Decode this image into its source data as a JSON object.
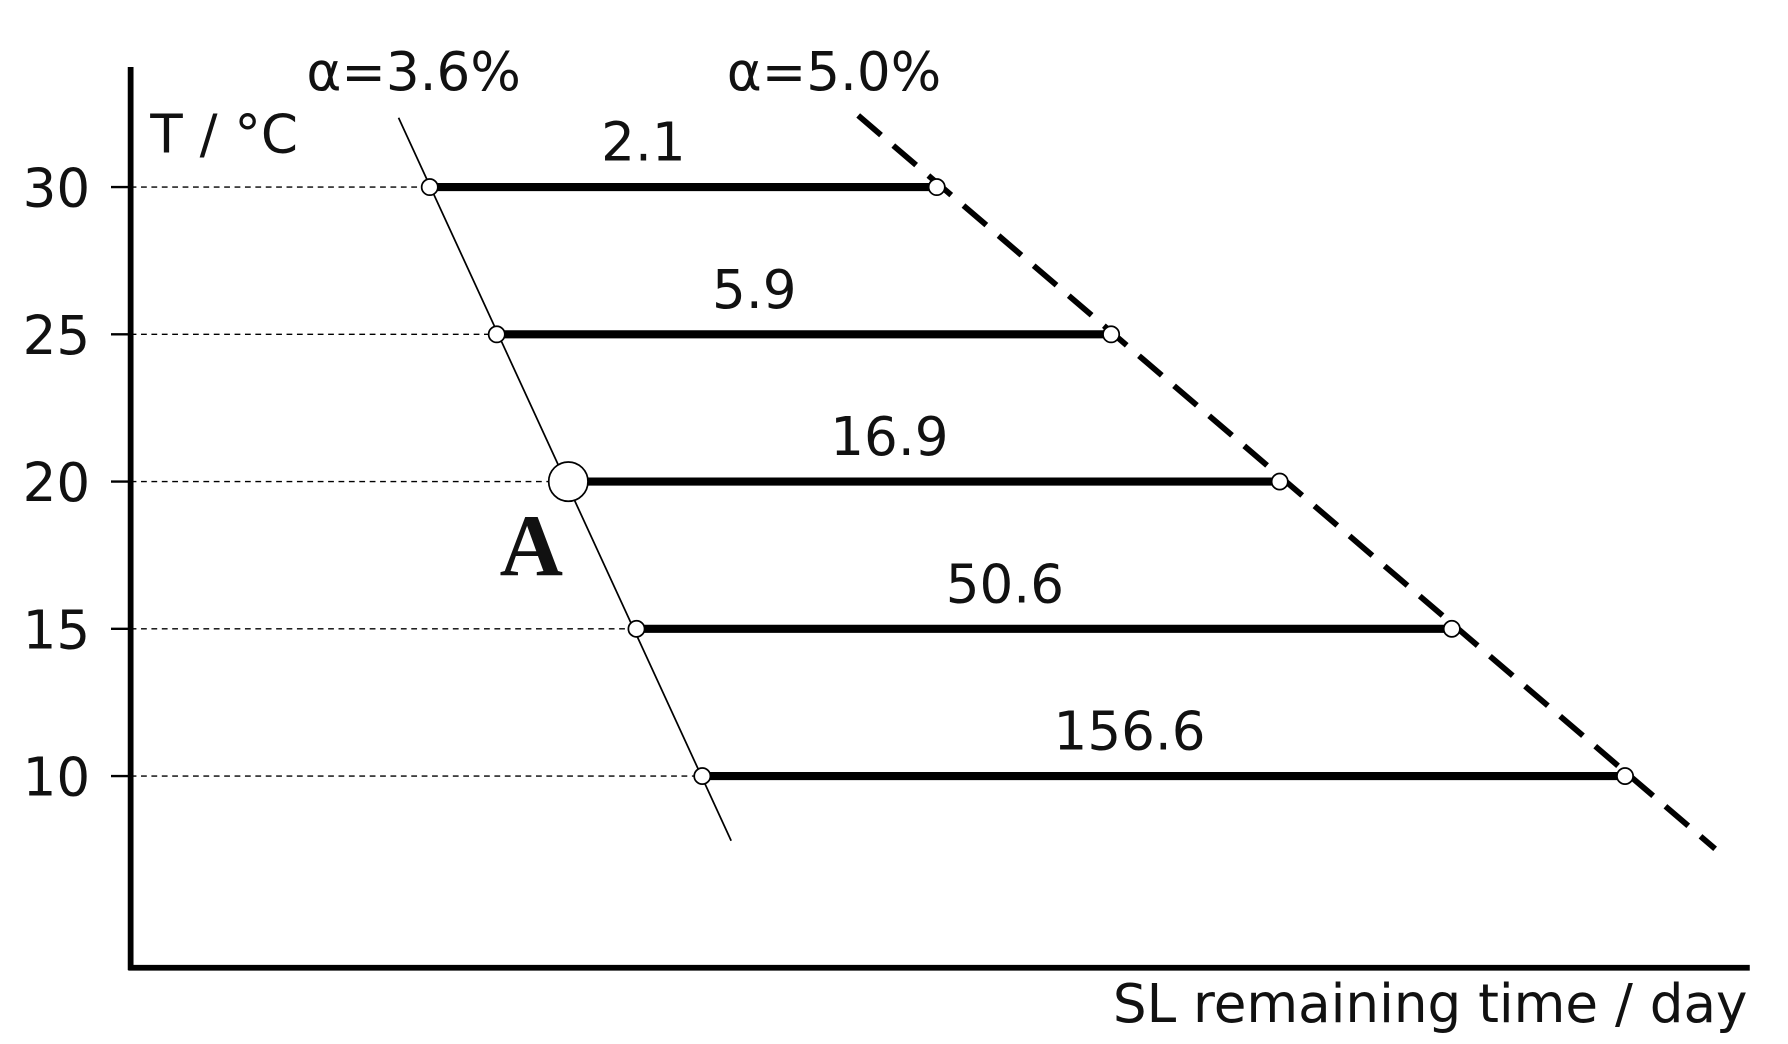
{
  "y_axis": {
    "label": "T / °C",
    "ticks": [
      30,
      25,
      20,
      15,
      10
    ]
  },
  "x_axis": {
    "label": "SL remaining  time / day"
  },
  "lines": [
    {
      "label": "α=3.6%"
    },
    {
      "label": "α=5.0%"
    }
  ],
  "segments": [
    {
      "time": 2.1
    },
    {
      "time": 5.9
    },
    {
      "time": 16.9
    },
    {
      "time": 50.6
    },
    {
      "time": 156.6
    }
  ],
  "point_label": "A"
}
